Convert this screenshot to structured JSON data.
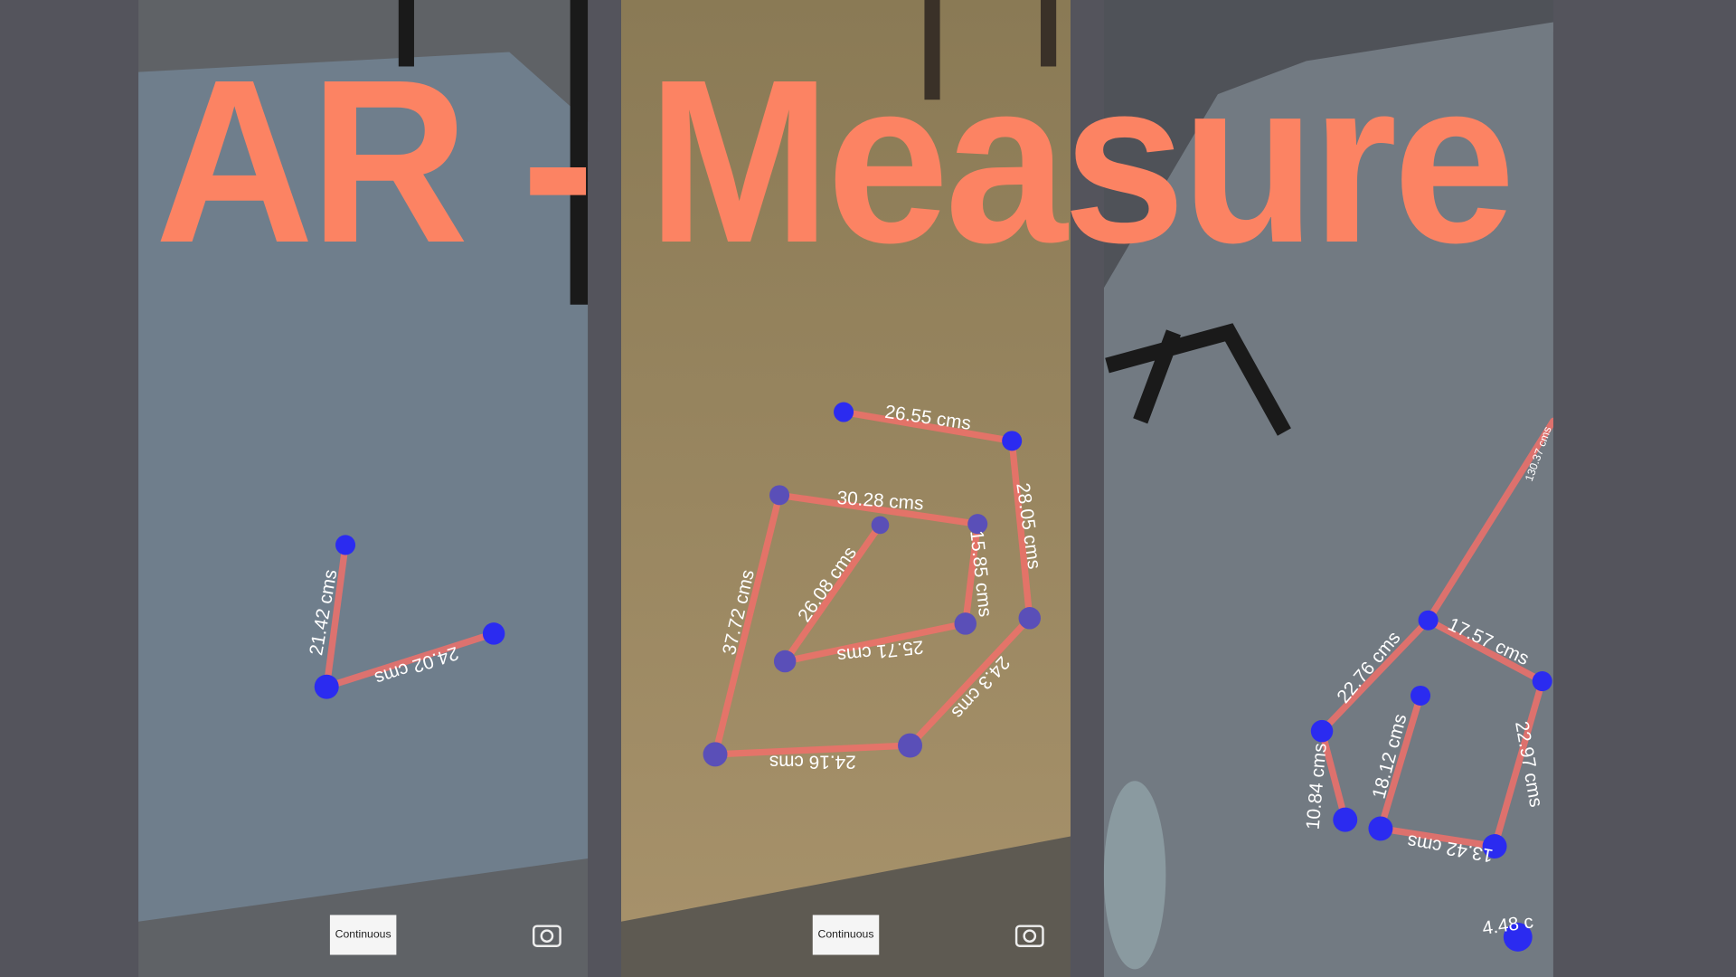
{
  "header": {
    "title": "AR - Measure"
  },
  "panels": [
    {
      "button": "Continuous",
      "measurements": [
        "21.42 cms",
        "24.02 cms"
      ]
    },
    {
      "button": "Continuous",
      "measurements": [
        "26.55 cms",
        "30.28 cms",
        "28.05 cms",
        "15.85 cms",
        "26.08 cms",
        "37.72 cms",
        "25.71 cms",
        "24.3 cms",
        "24.16 cms"
      ]
    },
    {
      "measurements": [
        "22.76 cms",
        "17.57 cms",
        "22.97 cms",
        "18.12 cms",
        "10.84 cms",
        "13.42 cms",
        "130.37 cms",
        "4.48 c"
      ]
    }
  ]
}
